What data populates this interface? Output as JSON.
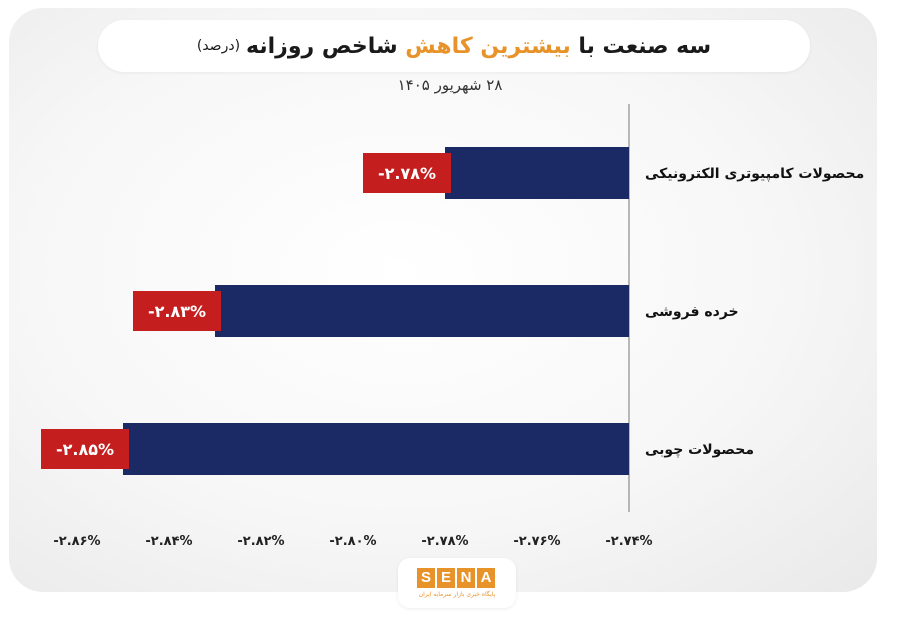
{
  "title": {
    "part1": "سه صنعت با",
    "accent": "بیشترین کاهش",
    "part2": "شاخص روزانه",
    "unit": "(درصد)"
  },
  "subtitle": "۲۸ شهریور ۱۴۰۵",
  "colors": {
    "bar": "#1b2a64",
    "value_box": "#c41e1e",
    "accent": "#e8922a",
    "quote": "#2ea59a"
  },
  "chart_data": {
    "type": "bar",
    "orientation": "horizontal",
    "categories": [
      "محصولات کامپیوتری الکترونیکی",
      "خرده فروشی",
      "محصولات چوبی"
    ],
    "values": [
      -2.78,
      -2.83,
      -2.85
    ],
    "value_labels": [
      "-۲.۷۸%",
      "-۲.۸۳%",
      "-۲.۸۵%"
    ],
    "xlim": [
      -2.86,
      -2.74
    ],
    "xticks": [
      -2.86,
      -2.84,
      -2.82,
      -2.8,
      -2.78,
      -2.76,
      -2.74
    ],
    "xtick_labels": [
      "-۲.۸۶%",
      "-۲.۸۴%",
      "-۲.۸۲%",
      "-۲.۸۰%",
      "-۲.۷۸%",
      "-۲.۷۶%",
      "-۲.۷۴%"
    ],
    "grid": false
  },
  "logo": {
    "letters": [
      "S",
      "E",
      "N",
      "A"
    ],
    "tagline": "پایگاه خبری بازار سرمایه ایران"
  }
}
